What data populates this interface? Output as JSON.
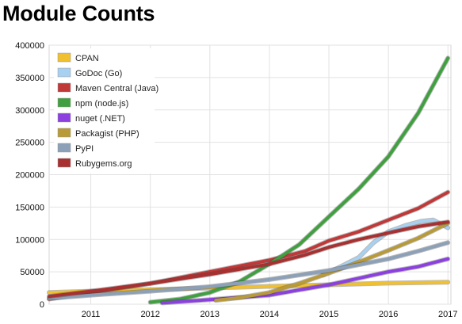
{
  "chart_data": {
    "type": "line",
    "title": "Module Counts",
    "xlabel": "",
    "ylabel": "",
    "xlim": [
      2010.3,
      2017.05
    ],
    "ylim": [
      0,
      400000
    ],
    "x_ticks": [
      2011,
      2012,
      2013,
      2014,
      2015,
      2016,
      2017
    ],
    "y_ticks": [
      0,
      50000,
      100000,
      150000,
      200000,
      250000,
      300000,
      350000,
      400000
    ],
    "grid": true,
    "legend_placement": "top-left",
    "series": [
      {
        "name": "CPAN",
        "color": "#f0c030",
        "points": [
          [
            2010.3,
            18000
          ],
          [
            2011,
            20000
          ],
          [
            2012,
            22500
          ],
          [
            2013,
            25000
          ],
          [
            2014,
            27500
          ],
          [
            2015,
            30000
          ],
          [
            2016,
            32500
          ],
          [
            2017,
            34000
          ]
        ]
      },
      {
        "name": "GoDoc (Go)",
        "color": "#a8d0f0",
        "points": [
          [
            2014.9,
            45000
          ],
          [
            2015.2,
            58000
          ],
          [
            2015.5,
            72000
          ],
          [
            2015.75,
            95000
          ],
          [
            2016,
            112000
          ],
          [
            2016.3,
            122000
          ],
          [
            2016.55,
            128000
          ],
          [
            2016.75,
            130000
          ],
          [
            2017,
            118000
          ]
        ]
      },
      {
        "name": "Maven Central (Java)",
        "color": "#c03838",
        "points": [
          [
            2010.3,
            8000
          ],
          [
            2011,
            18000
          ],
          [
            2012,
            32000
          ],
          [
            2013,
            50000
          ],
          [
            2014,
            68000
          ],
          [
            2014.6,
            82000
          ],
          [
            2015,
            98000
          ],
          [
            2015.5,
            112000
          ],
          [
            2016,
            130000
          ],
          [
            2016.5,
            148000
          ],
          [
            2017,
            173000
          ]
        ]
      },
      {
        "name": "npm (node.js)",
        "color": "#40a040",
        "points": [
          [
            2012,
            3000
          ],
          [
            2012.5,
            8000
          ],
          [
            2013,
            18000
          ],
          [
            2013.5,
            35000
          ],
          [
            2014,
            62000
          ],
          [
            2014.5,
            92000
          ],
          [
            2015,
            135000
          ],
          [
            2015.5,
            178000
          ],
          [
            2016,
            228000
          ],
          [
            2016.5,
            295000
          ],
          [
            2017,
            380000
          ]
        ]
      },
      {
        "name": "nuget (.NET)",
        "color": "#8c40e0",
        "points": [
          [
            2012.2,
            2000
          ],
          [
            2013,
            7000
          ],
          [
            2014,
            14000
          ],
          [
            2015,
            30000
          ],
          [
            2015.5,
            40000
          ],
          [
            2016,
            50000
          ],
          [
            2016.5,
            58000
          ],
          [
            2017,
            70000
          ]
        ]
      },
      {
        "name": "Packagist (PHP)",
        "color": "#b89a38",
        "points": [
          [
            2013.1,
            6000
          ],
          [
            2013.5,
            10000
          ],
          [
            2014,
            18000
          ],
          [
            2014.5,
            32000
          ],
          [
            2015,
            48000
          ],
          [
            2015.5,
            65000
          ],
          [
            2016,
            83000
          ],
          [
            2016.5,
            102000
          ],
          [
            2017,
            125000
          ]
        ]
      },
      {
        "name": "PyPI",
        "color": "#8ca0b8",
        "points": [
          [
            2010.3,
            9000
          ],
          [
            2011,
            14000
          ],
          [
            2012,
            20000
          ],
          [
            2013,
            27000
          ],
          [
            2014,
            38000
          ],
          [
            2015,
            52000
          ],
          [
            2016,
            70000
          ],
          [
            2016.5,
            82000
          ],
          [
            2017,
            95000
          ]
        ]
      },
      {
        "name": "Rubygems.org",
        "color": "#a83030",
        "points": [
          [
            2010.3,
            12000
          ],
          [
            2011,
            20000
          ],
          [
            2012,
            32000
          ],
          [
            2013,
            46000
          ],
          [
            2014,
            62000
          ],
          [
            2014.6,
            76000
          ],
          [
            2015,
            88000
          ],
          [
            2015.5,
            100000
          ],
          [
            2016,
            110000
          ],
          [
            2016.5,
            120000
          ],
          [
            2017,
            127000
          ]
        ]
      }
    ]
  }
}
